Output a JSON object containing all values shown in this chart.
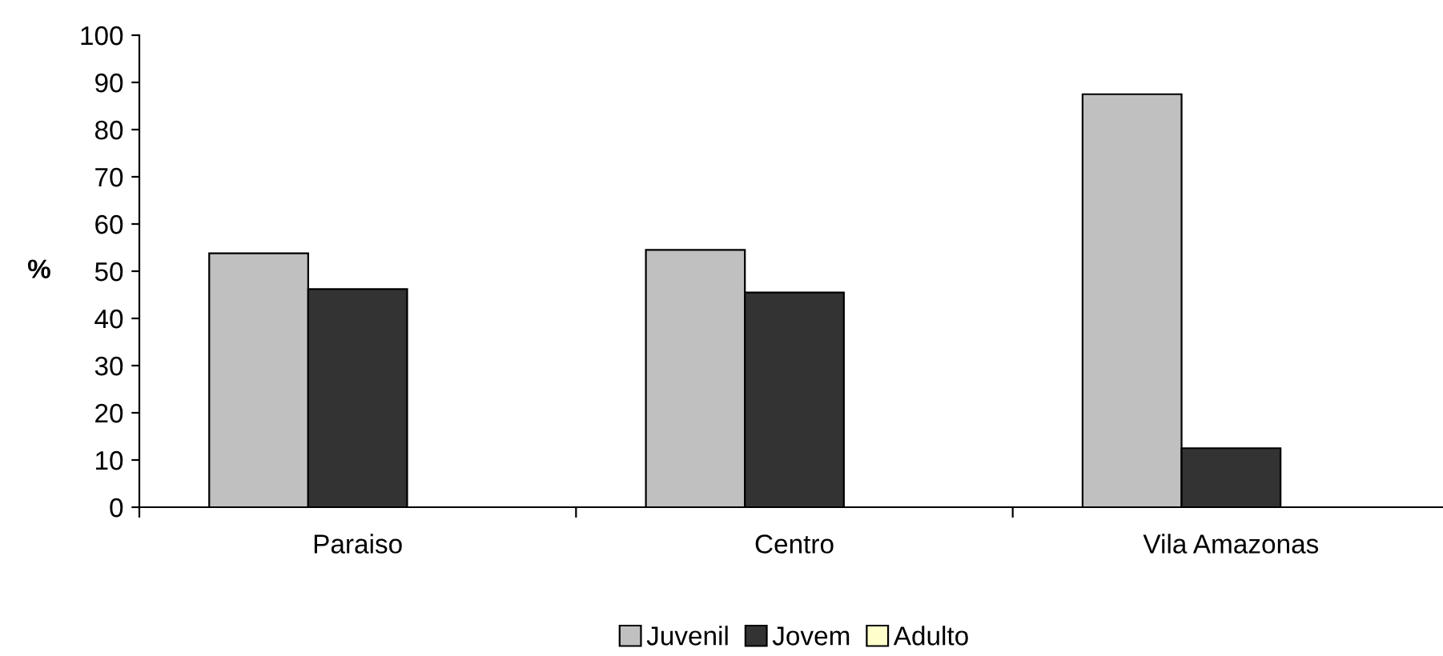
{
  "chart_data": {
    "type": "bar",
    "ylabel": "%",
    "categories": [
      "Paraiso",
      "Centro",
      "Vila Amazonas"
    ],
    "series": [
      {
        "name": "Juvenil",
        "color": "#c0c0c0",
        "values": [
          53.8,
          54.5,
          87.5
        ]
      },
      {
        "name": "Jovem",
        "color": "#333333",
        "values": [
          46.2,
          45.5,
          12.5
        ]
      },
      {
        "name": "Adulto",
        "color": "#ffffcc",
        "values": [
          0,
          0,
          0
        ]
      }
    ],
    "ylim": [
      0,
      100
    ],
    "yticks": [
      0,
      10,
      20,
      30,
      40,
      50,
      60,
      70,
      80,
      90,
      100
    ],
    "grid": false,
    "legend": "bottom"
  }
}
